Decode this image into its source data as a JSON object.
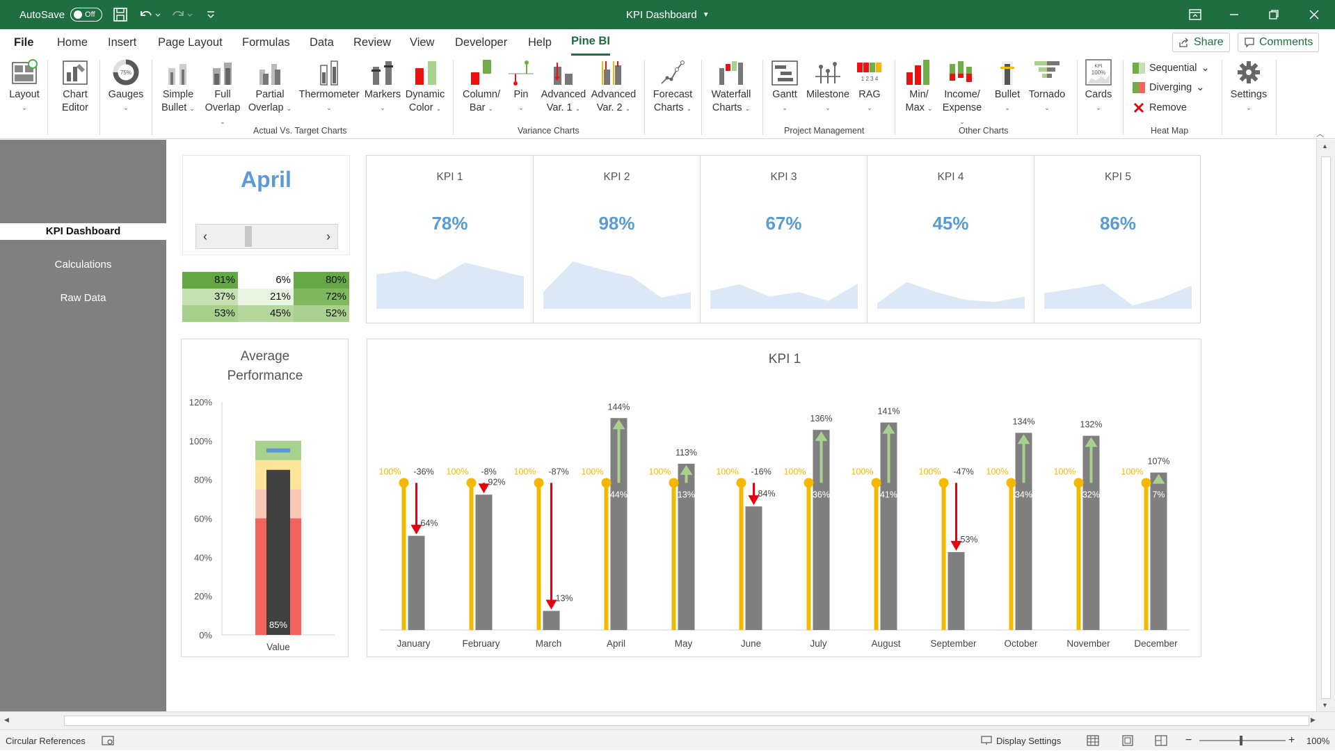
{
  "titlebar": {
    "autosave_label": "AutoSave",
    "autosave_state": "Off",
    "doc_title": "KPI Dashboard"
  },
  "menu": {
    "tabs": [
      "File",
      "Home",
      "Insert",
      "Page Layout",
      "Formulas",
      "Data",
      "Review",
      "View",
      "Developer",
      "Help",
      "Pine BI"
    ],
    "active": "Pine BI",
    "share": "Share",
    "comments": "Comments"
  },
  "ribbon": {
    "layout": "Layout",
    "chart_editor": [
      "Chart",
      "Editor"
    ],
    "gauges": "Gauges",
    "gauge_icon_text": "75%",
    "simple_bullet": [
      "Simple",
      "Bullet"
    ],
    "full_overlap": [
      "Full",
      "Overlap"
    ],
    "partial_overlap": [
      "Partial",
      "Overlap"
    ],
    "thermometer": "Thermometer",
    "markers": "Markers",
    "dynamic_color": [
      "Dynamic",
      "Color"
    ],
    "column_bar": [
      "Column/",
      "Bar"
    ],
    "pin": "Pin",
    "adv_var1": [
      "Advanced",
      "Var. 1"
    ],
    "adv_var2": [
      "Advanced",
      "Var. 2"
    ],
    "forecast_charts": [
      "Forecast",
      "Charts"
    ],
    "waterfall_charts": [
      "Waterfall",
      "Charts"
    ],
    "gantt": "Gantt",
    "milestone": "Milestone",
    "rag": "RAG",
    "rag_icon_text": "1 2 3 4",
    "min_max": [
      "Min/",
      "Max"
    ],
    "income_expense": [
      "Income/",
      "Expense"
    ],
    "bullet": "Bullet",
    "tornado": "Tornado",
    "cards": "Cards",
    "cards_icon_text": [
      "KPI",
      "100%"
    ],
    "sequential": "Sequential",
    "diverging": "Diverging",
    "remove": "Remove",
    "settings": "Settings",
    "groups": {
      "actual_vs_target": "Actual Vs. Target Charts",
      "variance": "Variance Charts",
      "project_management": "Project Management",
      "other": "Other Charts",
      "heat_map": "Heat Map"
    }
  },
  "sidebar": {
    "items": [
      "KPI Dashboard",
      "Calculations",
      "Raw Data"
    ],
    "active": "KPI Dashboard"
  },
  "dashboard": {
    "month": "April",
    "heatmap": [
      [
        "81%",
        "6%",
        "80%"
      ],
      [
        "37%",
        "21%",
        "72%"
      ],
      [
        "53%",
        "45%",
        "52%"
      ]
    ],
    "heatmap_colors": [
      [
        "#63a844",
        "#ffffff",
        "#65a845"
      ],
      [
        "#c6e0b4",
        "#eaf4e3",
        "#7fb85e"
      ],
      [
        "#a8d08d",
        "#b5d79e",
        "#a9d08e"
      ]
    ],
    "kpis": [
      {
        "name": "KPI 1",
        "value": "78%"
      },
      {
        "name": "KPI 2",
        "value": "98%"
      },
      {
        "name": "KPI 3",
        "value": "67%"
      },
      {
        "name": "KPI 4",
        "value": "45%"
      },
      {
        "name": "KPI 5",
        "value": "86%"
      }
    ],
    "sparklines": [
      [
        0.62,
        0.68,
        0.52,
        0.83,
        0.7,
        0.58
      ],
      [
        0.3,
        0.85,
        0.7,
        0.58,
        0.2,
        0.3
      ],
      [
        0.32,
        0.44,
        0.22,
        0.3,
        0.14,
        0.45
      ],
      [
        0.1,
        0.48,
        0.3,
        0.16,
        0.12,
        0.22
      ],
      [
        0.28,
        0.36,
        0.45,
        0.06,
        0.2,
        0.42
      ]
    ],
    "sparkline_color": "#dce8f5",
    "avg_title": [
      "Average",
      "Performance"
    ],
    "kpi_chart_title": "KPI 1"
  },
  "chart_data": [
    {
      "type": "bar",
      "title": "Average Performance",
      "categories": [
        "Value"
      ],
      "values": [
        85
      ],
      "value_label": "85%",
      "target": 95,
      "bands": [
        {
          "upto": 60,
          "color": "#f4645f"
        },
        {
          "upto": 75,
          "color": "#f8c8b4"
        },
        {
          "upto": 90,
          "color": "#fde59a"
        },
        {
          "upto": 100,
          "color": "#a9d18e"
        }
      ],
      "ylim": [
        0,
        120
      ],
      "yticks": [
        0,
        20,
        40,
        60,
        80,
        100,
        120
      ],
      "ytick_labels": [
        "0%",
        "20%",
        "40%",
        "60%",
        "80%",
        "100%",
        "120%"
      ],
      "bar_color": "#404040",
      "target_color": "#5b9bd5"
    },
    {
      "type": "bar",
      "title": "KPI 1",
      "categories": [
        "January",
        "February",
        "March",
        "April",
        "May",
        "June",
        "July",
        "August",
        "September",
        "October",
        "November",
        "December"
      ],
      "target": [
        100,
        100,
        100,
        100,
        100,
        100,
        100,
        100,
        100,
        100,
        100,
        100
      ],
      "target_label": "100%",
      "actual": [
        64,
        92,
        13,
        144,
        113,
        84,
        136,
        141,
        53,
        134,
        132,
        107
      ],
      "actual_labels": [
        "64%",
        "92%",
        "13%",
        "144%",
        "113%",
        "84%",
        "136%",
        "141%",
        "53%",
        "134%",
        "132%",
        "107%"
      ],
      "variance_labels": [
        "-36%",
        "-8%",
        "-87%",
        "44%",
        "13%",
        "-16%",
        "36%",
        "41%",
        "-47%",
        "34%",
        "32%",
        "7%"
      ],
      "ylim": [
        0,
        155
      ],
      "colors": {
        "target": "#f5b800",
        "actual": "#7f7f7f",
        "down": "#e3000f",
        "up": "#a9d18e"
      }
    }
  ],
  "status": {
    "circular": "Circular References",
    "display_settings": "Display Settings",
    "zoom": "100%"
  }
}
